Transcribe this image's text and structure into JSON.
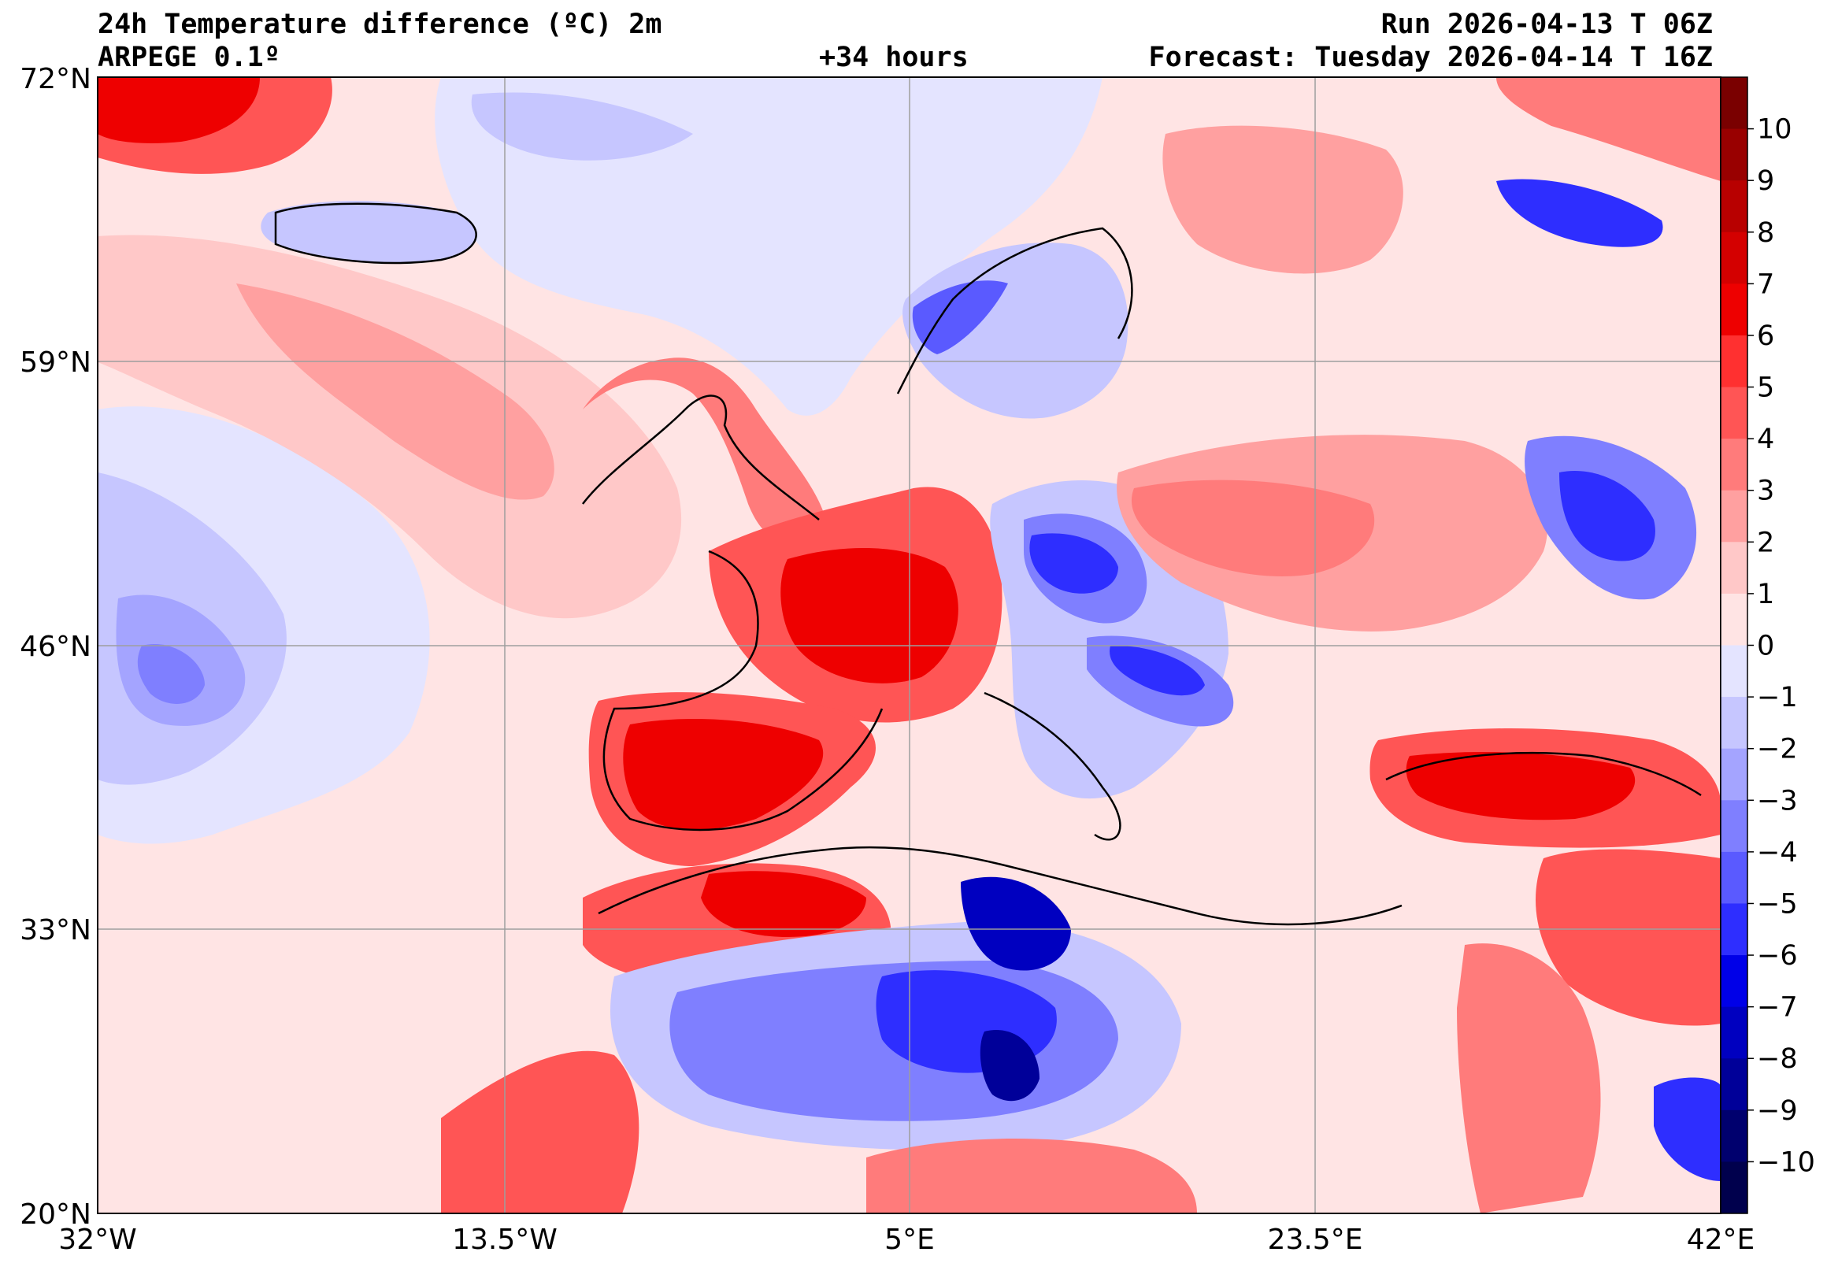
{
  "header": {
    "title": "24h Temperature difference (ºC) 2m",
    "model": "ARPEGE 0.1º",
    "lead_time": "+34 hours",
    "run": "Run 2026-04-13 T 06Z",
    "forecast": "Forecast: Tuesday 2026-04-14 T 16Z"
  },
  "axes": {
    "lat_labels": [
      "72°N",
      "59°N",
      "46°N",
      "33°N",
      "20°N"
    ],
    "lon_labels": [
      "32°W",
      "13.5°W",
      "5°E",
      "23.5°E",
      "42°E"
    ]
  },
  "colorbar": {
    "labels": [
      "10",
      "9",
      "8",
      "7",
      "6",
      "5",
      "4",
      "3",
      "2",
      "1",
      "0",
      "−1",
      "−2",
      "−3",
      "−4",
      "−5",
      "−6",
      "−7",
      "−8",
      "−9",
      "−10"
    ],
    "colors": [
      "#7a0000",
      "#990000",
      "#b80000",
      "#d40000",
      "#ee0000",
      "#ff3030",
      "#ff5555",
      "#ff7b7b",
      "#ffa0a0",
      "#ffc8c8",
      "#ffe4e4",
      "#e4e4ff",
      "#c6c6ff",
      "#a4a4ff",
      "#7f7fff",
      "#5a5aff",
      "#2e2eff",
      "#0000e8",
      "#0000c0",
      "#000099",
      "#00006e",
      "#00004d"
    ]
  }
}
